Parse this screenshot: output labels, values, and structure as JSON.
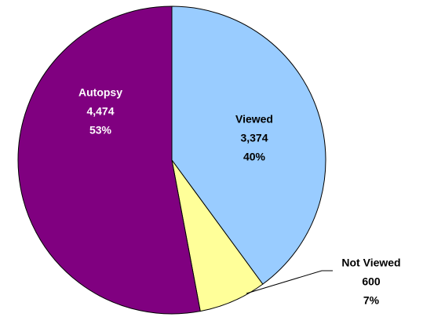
{
  "chart_data": {
    "type": "pie",
    "categories": [
      "Viewed",
      "Not Viewed",
      "Autopsy"
    ],
    "values": [
      3374,
      600,
      4474
    ],
    "value_labels": [
      "3,374",
      "600",
      "4,474"
    ],
    "percents": [
      40,
      7,
      53
    ],
    "percent_labels": [
      "40%",
      "7%",
      "53%"
    ],
    "colors": [
      "#99ccff",
      "#ffff99",
      "#800080"
    ],
    "label_colors": [
      "#000000",
      "#000000",
      "#ffffff"
    ]
  }
}
